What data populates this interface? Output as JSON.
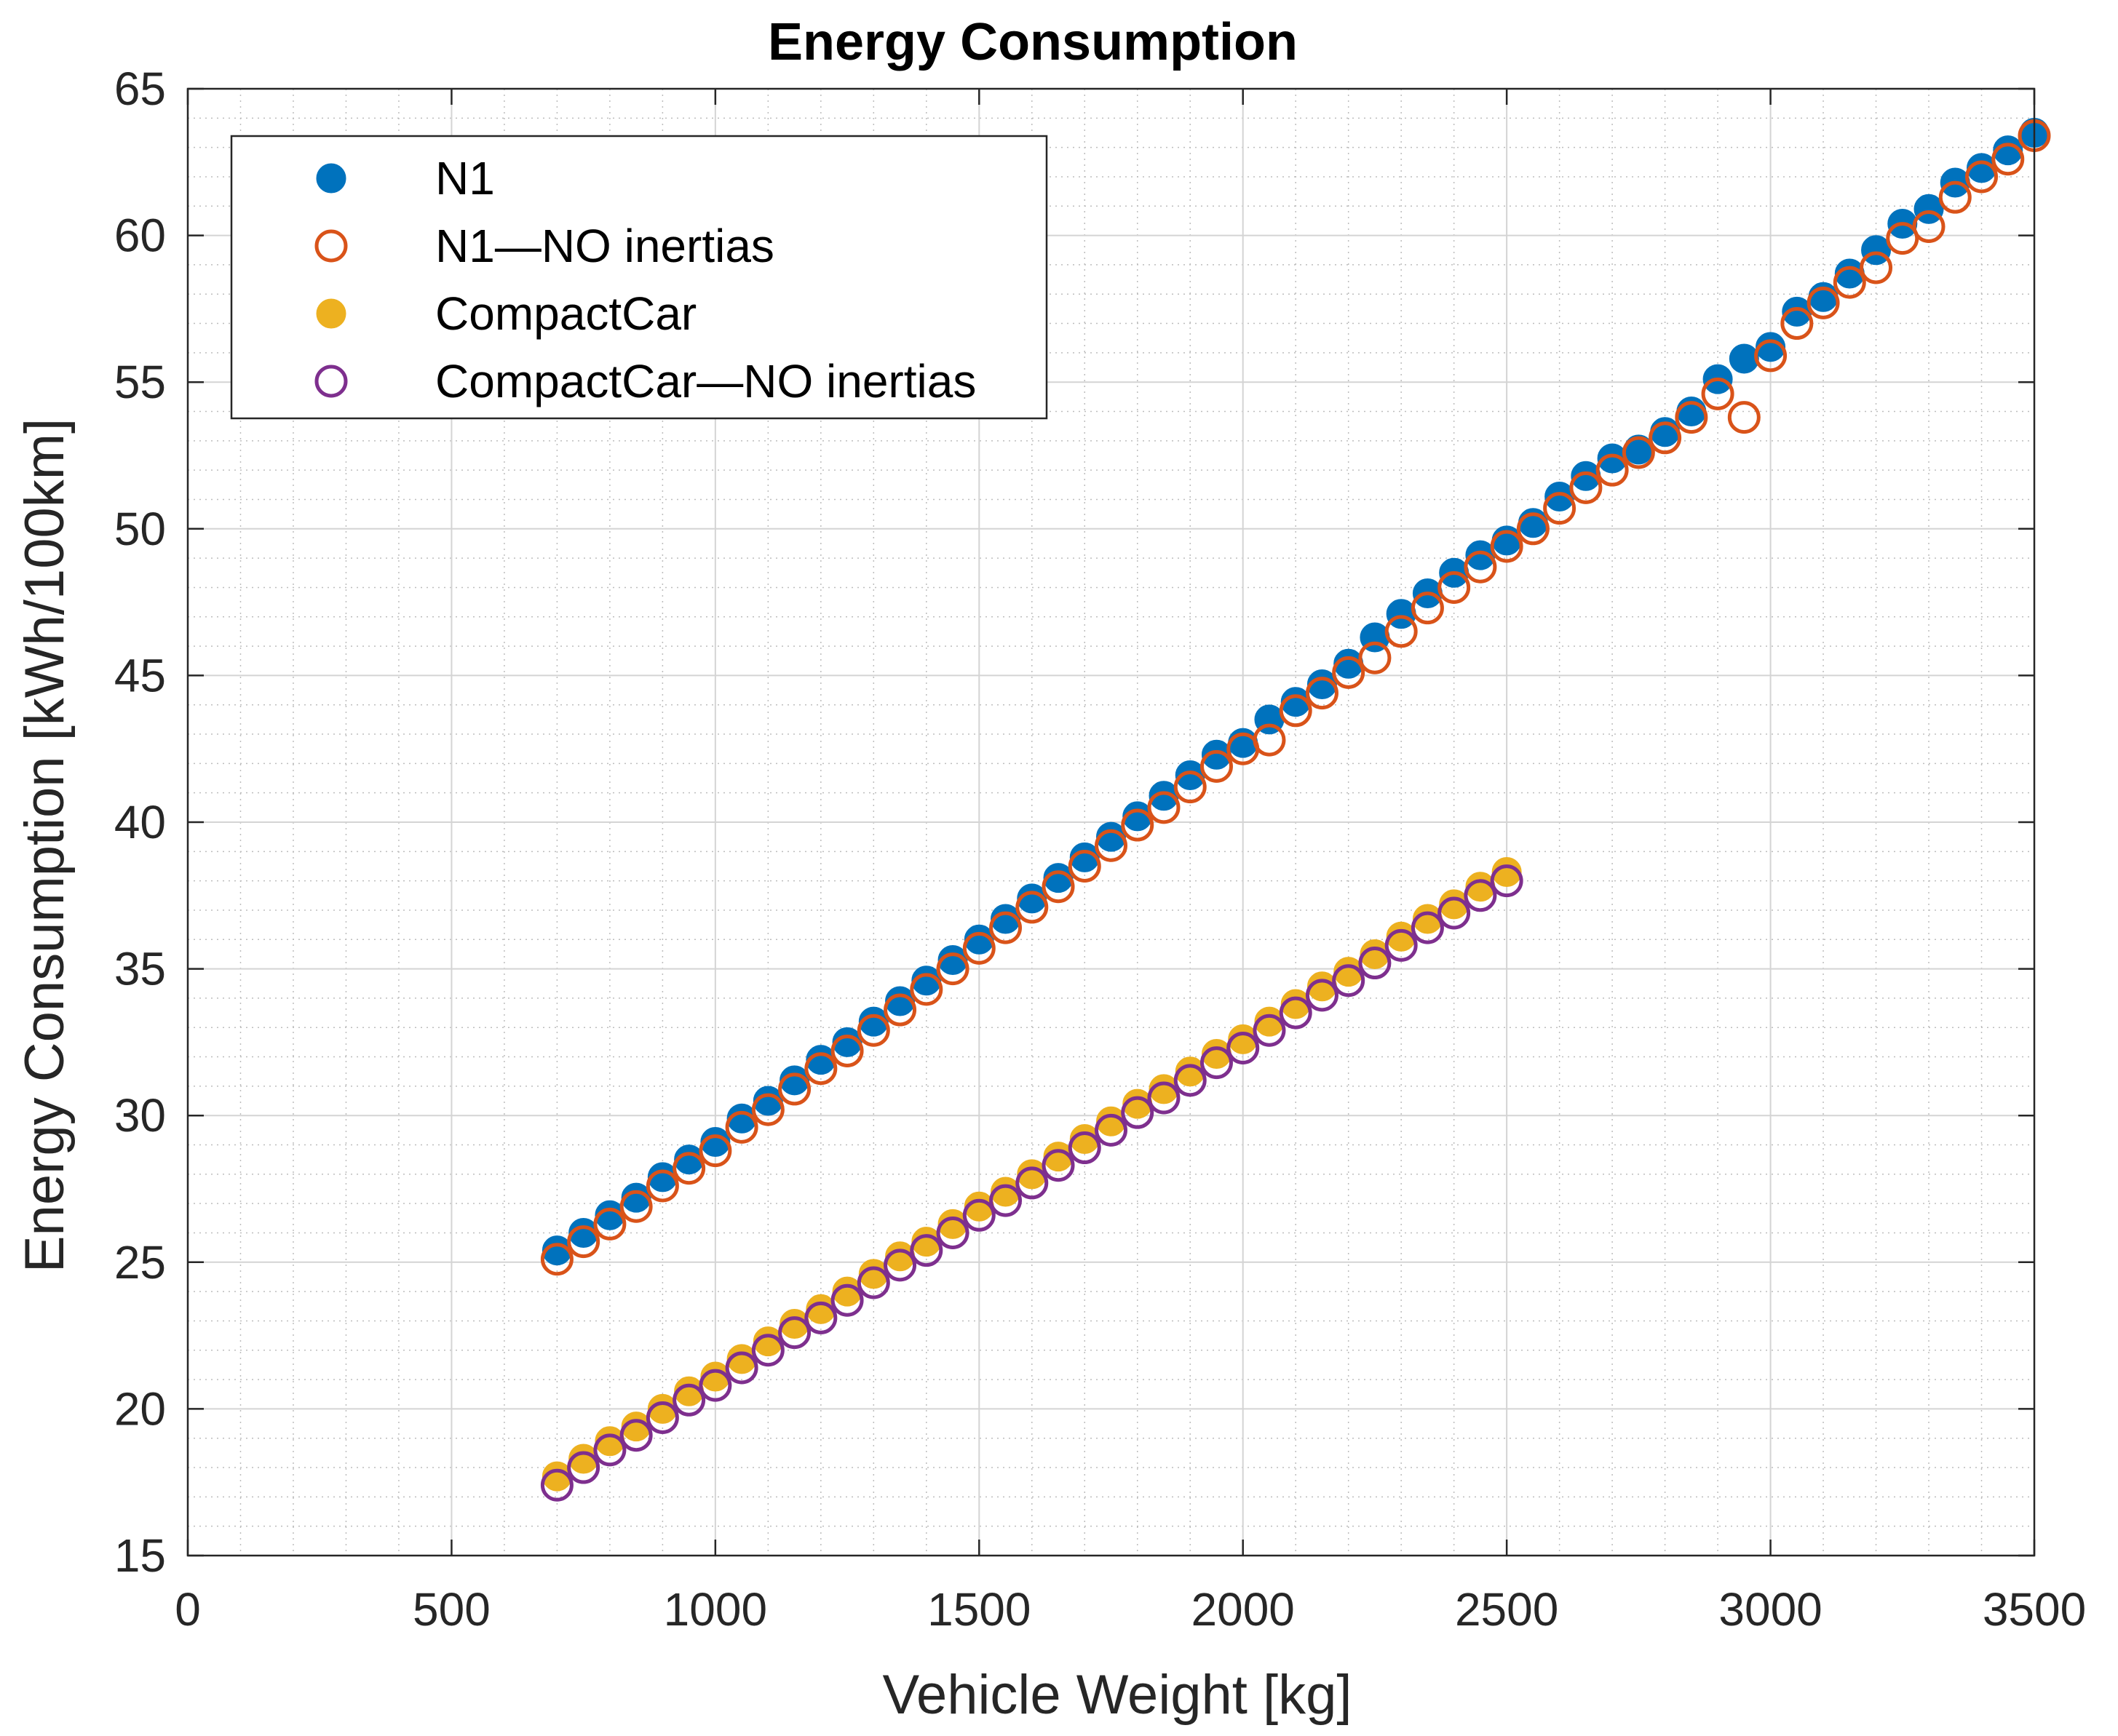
{
  "chart_data": {
    "type": "scatter",
    "title": "Energy Consumption",
    "xlabel": "Vehicle Weight [kg]",
    "ylabel": "Energy Consumption [kWh/100km]",
    "xlim": [
      0,
      3500
    ],
    "ylim": [
      15,
      65
    ],
    "xticks": [
      0,
      500,
      1000,
      1500,
      2000,
      2500,
      3000,
      3500
    ],
    "yticks": [
      15,
      20,
      25,
      30,
      35,
      40,
      45,
      50,
      55,
      60,
      65
    ],
    "grid": true,
    "minor_grid": true,
    "legend_position": "top-left",
    "series": [
      {
        "name": "N1",
        "marker": "filled-circle",
        "color": "#0072BD",
        "x": [
          700,
          750,
          800,
          850,
          900,
          950,
          1000,
          1050,
          1100,
          1150,
          1200,
          1250,
          1300,
          1350,
          1400,
          1450,
          1500,
          1550,
          1600,
          1650,
          1700,
          1750,
          1800,
          1850,
          1900,
          1950,
          2000,
          2050,
          2100,
          2150,
          2200,
          2250,
          2300,
          2350,
          2400,
          2450,
          2500,
          2550,
          2600,
          2650,
          2700,
          2750,
          2800,
          2850,
          2900,
          2950,
          3000,
          3050,
          3100,
          3150,
          3200,
          3250,
          3300,
          3350,
          3400,
          3450,
          3500
        ],
        "y": [
          25.4,
          26.0,
          26.6,
          27.2,
          27.9,
          28.5,
          29.1,
          29.9,
          30.5,
          31.2,
          31.9,
          32.5,
          33.2,
          33.9,
          34.6,
          35.3,
          36.0,
          36.7,
          37.4,
          38.1,
          38.8,
          39.5,
          40.2,
          40.9,
          41.6,
          42.3,
          42.7,
          43.5,
          44.1,
          44.7,
          45.4,
          46.3,
          47.1,
          47.8,
          48.5,
          49.1,
          49.6,
          50.2,
          51.1,
          51.8,
          52.4,
          52.7,
          53.3,
          54.0,
          55.1,
          55.8,
          56.2,
          57.4,
          57.9,
          58.7,
          59.5,
          60.4,
          60.9,
          61.8,
          62.3,
          62.9,
          63.5
        ]
      },
      {
        "name": "N1—NO inertias",
        "marker": "open-circle",
        "color": "#D95319",
        "x": [
          700,
          750,
          800,
          850,
          900,
          950,
          1000,
          1050,
          1100,
          1150,
          1200,
          1250,
          1300,
          1350,
          1400,
          1450,
          1500,
          1550,
          1600,
          1650,
          1700,
          1750,
          1800,
          1850,
          1900,
          1950,
          2000,
          2050,
          2100,
          2150,
          2200,
          2250,
          2300,
          2350,
          2400,
          2450,
          2500,
          2550,
          2600,
          2650,
          2700,
          2750,
          2800,
          2850,
          2900,
          2950,
          3000,
          3050,
          3100,
          3150,
          3200,
          3250,
          3300,
          3350,
          3400,
          3450,
          3500
        ],
        "y": [
          25.1,
          25.7,
          26.3,
          26.9,
          27.6,
          28.2,
          28.8,
          29.6,
          30.2,
          30.9,
          31.6,
          32.2,
          32.9,
          33.6,
          34.3,
          35.0,
          35.7,
          36.4,
          37.1,
          37.8,
          38.5,
          39.2,
          39.9,
          40.5,
          41.2,
          41.9,
          42.5,
          42.8,
          43.8,
          44.4,
          45.1,
          45.6,
          46.5,
          47.3,
          48.0,
          48.7,
          49.4,
          50.0,
          50.7,
          51.4,
          52.0,
          52.6,
          53.1,
          53.8,
          54.6,
          53.8,
          55.9,
          57.0,
          57.7,
          58.4,
          58.9,
          59.9,
          60.3,
          61.3,
          62.0,
          62.6,
          63.4
        ]
      },
      {
        "name": "CompactCar",
        "marker": "filled-circle",
        "color": "#EDB120",
        "x": [
          700,
          750,
          800,
          850,
          900,
          950,
          1000,
          1050,
          1100,
          1150,
          1200,
          1250,
          1300,
          1350,
          1400,
          1450,
          1500,
          1550,
          1600,
          1650,
          1700,
          1750,
          1800,
          1850,
          1900,
          1950,
          2000,
          2050,
          2100,
          2150,
          2200,
          2250,
          2300,
          2350,
          2400,
          2450,
          2500
        ],
        "y": [
          17.7,
          18.3,
          18.9,
          19.4,
          20.0,
          20.6,
          21.1,
          21.7,
          22.3,
          22.9,
          23.4,
          24.0,
          24.6,
          25.2,
          25.7,
          26.3,
          26.9,
          27.4,
          28.0,
          28.6,
          29.2,
          29.8,
          30.4,
          30.9,
          31.5,
          32.1,
          32.6,
          33.2,
          33.8,
          34.4,
          34.9,
          35.5,
          36.1,
          36.7,
          37.2,
          37.8,
          38.3
        ]
      },
      {
        "name": "CompactCar—NO inertias",
        "marker": "open-circle",
        "color": "#7E2F8E",
        "x": [
          700,
          750,
          800,
          850,
          900,
          950,
          1000,
          1050,
          1100,
          1150,
          1200,
          1250,
          1300,
          1350,
          1400,
          1450,
          1500,
          1550,
          1600,
          1650,
          1700,
          1750,
          1800,
          1850,
          1900,
          1950,
          2000,
          2050,
          2100,
          2150,
          2200,
          2250,
          2300,
          2350,
          2400,
          2450,
          2500
        ],
        "y": [
          17.4,
          18.0,
          18.6,
          19.1,
          19.7,
          20.3,
          20.8,
          21.4,
          22.0,
          22.6,
          23.1,
          23.7,
          24.3,
          24.9,
          25.4,
          26.0,
          26.6,
          27.1,
          27.7,
          28.3,
          28.9,
          29.5,
          30.1,
          30.6,
          31.2,
          31.8,
          32.3,
          32.9,
          33.5,
          34.1,
          34.6,
          35.2,
          35.8,
          36.4,
          36.9,
          37.5,
          38.0
        ]
      }
    ]
  }
}
